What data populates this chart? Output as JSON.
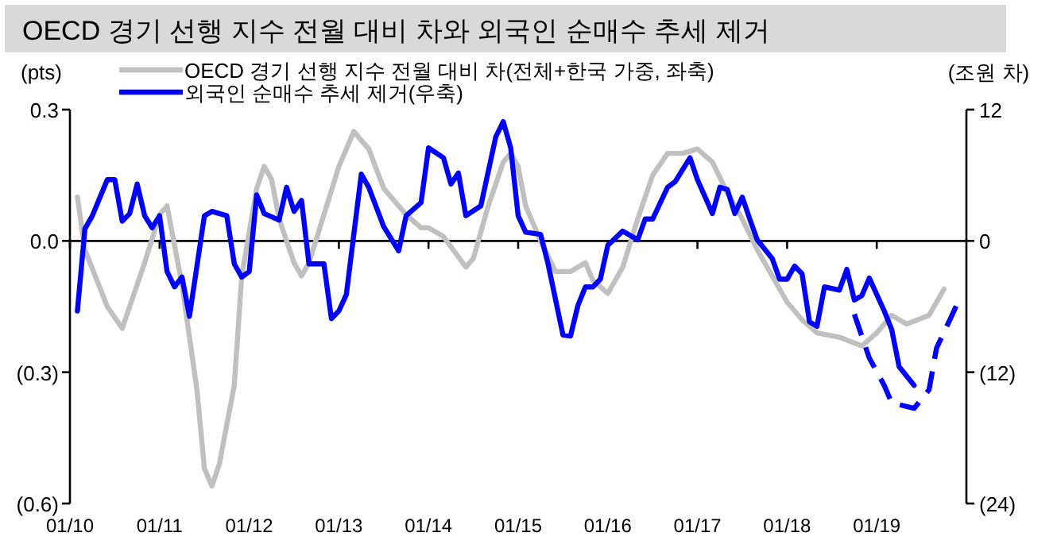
{
  "chart_data": {
    "type": "line",
    "title": "OECD 경기 선행 지수 전월 대비 차와 외국인 순매수 추세 제거",
    "ylabel": "(pts)",
    "y2label": "(조원 차)",
    "legend": "top left",
    "ref_lines": [
      {
        "axis": "y",
        "value": 0.0
      }
    ],
    "marker": "none",
    "xlim": [
      "2010-01",
      "2020-01"
    ],
    "xticks": [
      {
        "value": "2010-01",
        "label": "01/10"
      },
      {
        "value": "2011-01",
        "label": "01/11"
      },
      {
        "value": "2012-01",
        "label": "01/12"
      },
      {
        "value": "2013-01",
        "label": "01/13"
      },
      {
        "value": "2014-01",
        "label": "01/14"
      },
      {
        "value": "2015-01",
        "label": "01/15"
      },
      {
        "value": "2016-01",
        "label": "01/16"
      },
      {
        "value": "2017-01",
        "label": "01/17"
      },
      {
        "value": "2018-01",
        "label": "01/18"
      },
      {
        "value": "2019-01",
        "label": "01/19"
      }
    ],
    "ylim": [
      -0.6,
      0.3
    ],
    "yticks": [
      0.3,
      {
        "value": 0,
        "label": "0.0"
      },
      {
        "value": -0.3,
        "label": "(0.3)"
      },
      {
        "value": -0.6,
        "label": "(0.6)"
      }
    ],
    "y2lim": [
      -24,
      12
    ],
    "y2ticks": [
      12,
      0,
      {
        "value": -12,
        "label": "(12)"
      },
      {
        "value": -24,
        "label": "(24)"
      }
    ],
    "series": [
      {
        "name": "OECD 경기 선행 지수 전월 대비 차(전체+한국 가중, 좌축)",
        "color": "#c0c0c0",
        "line_style": "solid",
        "x": [
          "2010-02",
          "2010-03",
          "2010-06",
          "2010-08",
          "2010-09",
          "2010-11",
          "2011-01",
          "2011-02",
          "2011-04",
          "2011-06",
          "2011-07",
          "2011-08",
          "2011-09",
          "2011-11",
          "2011-12",
          "2012-02",
          "2012-03",
          "2012-04",
          "2012-05",
          "2012-07",
          "2012-08",
          "2012-09",
          "2012-11",
          "2013-01",
          "2013-03",
          "2013-05",
          "2013-07",
          "2013-10",
          "2013-12",
          "2014-01",
          "2014-03",
          "2014-06",
          "2014-07",
          "2014-09",
          "2014-11",
          "2014-12",
          "2015-01",
          "2015-02",
          "2015-04",
          "2015-06",
          "2015-08",
          "2015-10",
          "2015-11",
          "2016-01",
          "2016-03",
          "2016-05",
          "2016-07",
          "2016-09",
          "2016-11",
          "2017-01",
          "2017-03",
          "2017-05",
          "2017-07",
          "2017-09",
          "2017-11",
          "2018-01",
          "2018-03",
          "2018-05",
          "2018-08",
          "2018-11",
          "2019-01",
          "2019-03",
          "2019-05",
          "2019-08",
          "2019-10"
        ],
        "values": [
          0.1,
          -0.02,
          -0.15,
          -0.2,
          -0.15,
          -0.05,
          0.06,
          0.08,
          -0.1,
          -0.34,
          -0.52,
          -0.56,
          -0.51,
          -0.33,
          -0.08,
          0.12,
          0.17,
          0.14,
          0.05,
          -0.05,
          -0.08,
          -0.05,
          0.06,
          0.17,
          0.25,
          0.21,
          0.12,
          0.06,
          0.03,
          0.03,
          0.01,
          -0.06,
          -0.04,
          0.08,
          0.18,
          0.2,
          0.17,
          0.08,
          0.0,
          -0.07,
          -0.07,
          -0.05,
          -0.09,
          -0.12,
          -0.06,
          0.05,
          0.15,
          0.2,
          0.2,
          0.21,
          0.18,
          0.11,
          0.05,
          -0.02,
          -0.08,
          -0.14,
          -0.18,
          -0.21,
          -0.22,
          -0.24,
          -0.21,
          -0.17,
          -0.19,
          -0.17,
          -0.11
        ]
      },
      {
        "name": "외국인 순매수 추세 제거(우축)",
        "color": "#0000ff",
        "axis": "y2",
        "line_style": "solid",
        "x": [
          "2010-02",
          "2010-03",
          "2010-04",
          "2010-06",
          "2010-07",
          "2010-08",
          "2010-09",
          "2010-10",
          "2010-11",
          "2010-12",
          "2011-01",
          "2011-02",
          "2011-03",
          "2011-04",
          "2011-05",
          "2011-07",
          "2011-08",
          "2011-10",
          "2011-11",
          "2011-12",
          "2012-01",
          "2012-02",
          "2012-03",
          "2012-05",
          "2012-06",
          "2012-07",
          "2012-08",
          "2012-09",
          "2012-11",
          "2012-12",
          "2013-01",
          "2013-02",
          "2013-04",
          "2013-05",
          "2013-07",
          "2013-09",
          "2013-10",
          "2013-12",
          "2014-01",
          "2014-03",
          "2014-04",
          "2014-05",
          "2014-06",
          "2014-08",
          "2014-10",
          "2014-11",
          "2014-12",
          "2015-01",
          "2015-02",
          "2015-04",
          "2015-05",
          "2015-07",
          "2015-08",
          "2015-09",
          "2015-10",
          "2015-11",
          "2015-12",
          "2016-01",
          "2016-03",
          "2016-05",
          "2016-06",
          "2016-07",
          "2016-09",
          "2016-10",
          "2016-12",
          "2017-01",
          "2017-03",
          "2017-04",
          "2017-05",
          "2017-06",
          "2017-07",
          "2017-08",
          "2017-09",
          "2017-11",
          "2017-12",
          "2018-01",
          "2018-02",
          "2018-03",
          "2018-04",
          "2018-05",
          "2018-06",
          "2018-08",
          "2018-09",
          "2018-10",
          "2018-11",
          "2018-12",
          "2019-02",
          "2019-03",
          "2019-04",
          "2019-06"
        ],
        "values": [
          -6.4,
          1.1,
          2.3,
          5.6,
          5.6,
          1.8,
          2.5,
          5.2,
          2.3,
          1.2,
          2.3,
          -2.8,
          -4.2,
          -3.3,
          -6.9,
          2.3,
          2.7,
          2.3,
          -2.1,
          -3.3,
          -2.8,
          4.2,
          2.5,
          1.9,
          4.9,
          2.7,
          3.7,
          -2.1,
          -2.1,
          -7.1,
          -6.4,
          -4.9,
          6.1,
          4.9,
          1.3,
          -0.9,
          2.3,
          3.5,
          8.5,
          7.6,
          5.2,
          6.2,
          2.3,
          3.2,
          9.5,
          10.9,
          8.5,
          2.3,
          0.8,
          0.6,
          -2.1,
          -8.6,
          -8.7,
          -5.9,
          -4.2,
          -4.2,
          -3.5,
          -0.4,
          0.9,
          0.1,
          2.0,
          2.0,
          4.9,
          5.4,
          7.6,
          5.6,
          2.5,
          4.9,
          4.7,
          2.5,
          4.0,
          2.0,
          0.1,
          -1.6,
          -3.5,
          -3.5,
          -2.3,
          -3.0,
          -7.4,
          -7.8,
          -4.2,
          -4.5,
          -2.6,
          -5.4,
          -5.0,
          -3.4,
          -6.4,
          -8.1,
          -11.5,
          -13.2
        ]
      },
      {
        "color": "#0000ff",
        "axis": "y2",
        "line_style": "dashed",
        "x": [
          "2018-10",
          "2018-12",
          "2019-02",
          "2019-03",
          "2019-06",
          "2019-08",
          "2019-09",
          "2019-11",
          "2019-12"
        ],
        "values": [
          -6.7,
          -10.7,
          -13.2,
          -14.8,
          -15.3,
          -13.6,
          -9.8,
          -6.9,
          -5.4
        ]
      }
    ]
  }
}
